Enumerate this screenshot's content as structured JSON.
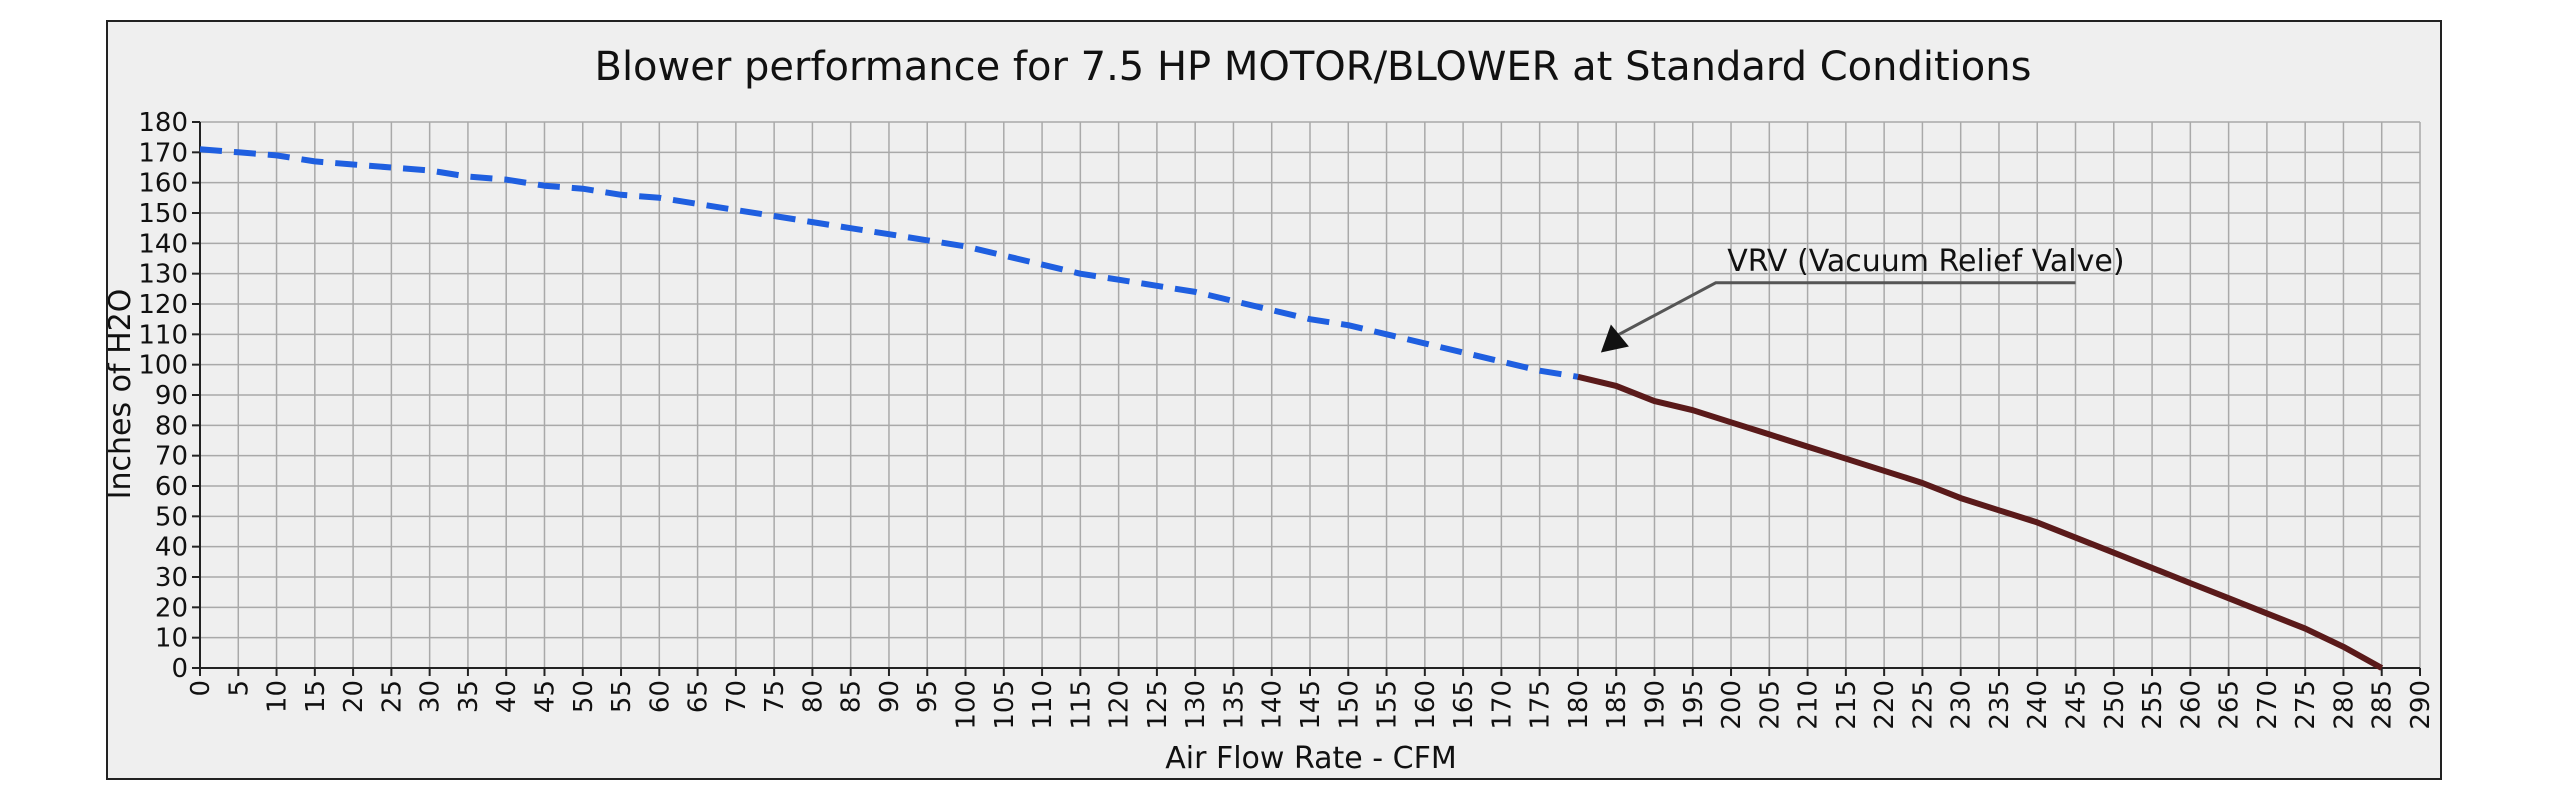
{
  "chart_data": {
    "type": "line",
    "title": "Blower performance for 7.5 HP MOTOR/BLOWER at Standard Conditions",
    "xlabel": "Air Flow Rate - CFM",
    "ylabel": "Inches of H2O",
    "xlim": [
      0,
      290
    ],
    "ylim": [
      0,
      180
    ],
    "x_tick_step": 5,
    "y_tick_step": 10,
    "grid": true,
    "colors": {
      "background": "#efefef",
      "grid": "#a9a9a9",
      "dashed_series": "#1f5fe0",
      "solid_series": "#5a1a1a",
      "annotation": "#555555"
    },
    "series": [
      {
        "style": "dashed",
        "x": [
          0,
          5,
          10,
          15,
          20,
          25,
          30,
          35,
          40,
          45,
          50,
          55,
          60,
          65,
          70,
          75,
          80,
          85,
          90,
          95,
          100,
          105,
          110,
          115,
          120,
          125,
          130,
          135,
          140,
          145,
          150,
          155,
          160,
          165,
          170,
          175,
          180
        ],
        "y": [
          171,
          170,
          169,
          167,
          166,
          165,
          164,
          162,
          161,
          159,
          158,
          156,
          155,
          153,
          151,
          149,
          147,
          145,
          143,
          141,
          139,
          136,
          133,
          130,
          128,
          126,
          124,
          121,
          118,
          115,
          113,
          110,
          107,
          104,
          101,
          98,
          96
        ]
      },
      {
        "style": "solid",
        "x": [
          180,
          185,
          190,
          195,
          200,
          205,
          210,
          215,
          220,
          225,
          230,
          235,
          240,
          245,
          250,
          255,
          260,
          265,
          270,
          275,
          280,
          285
        ],
        "y": [
          96,
          93,
          88,
          85,
          81,
          77,
          73,
          69,
          65,
          61,
          56,
          52,
          48,
          43,
          38,
          33,
          28,
          23,
          18,
          13,
          7,
          0
        ]
      }
    ],
    "annotations": [
      {
        "text": "VRV (Vacuum Relief Valve)",
        "arrow_to": [
          183,
          104
        ]
      }
    ]
  }
}
